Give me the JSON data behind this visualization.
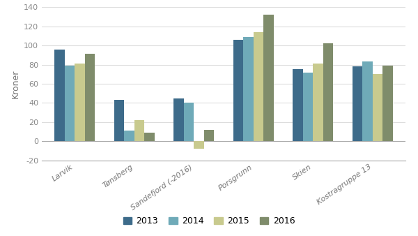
{
  "categories": [
    "Larvik",
    "Tønsberg",
    "Sandefjord (-2016)",
    "Porsgrunn",
    "Skien",
    "Kostragruppe 13"
  ],
  "years": [
    "2013",
    "2014",
    "2015",
    "2016"
  ],
  "values": {
    "Larvik": [
      96,
      79,
      81,
      91
    ],
    "Tønsberg": [
      43,
      11,
      22,
      9
    ],
    "Sandefjord (-2016)": [
      45,
      40,
      -8,
      12
    ],
    "Porsgrunn": [
      106,
      109,
      114,
      132
    ],
    "Skien": [
      75,
      72,
      81,
      102
    ],
    "Kostragruppe 13": [
      78,
      83,
      70,
      79
    ]
  },
  "colors": [
    "#3d6b8a",
    "#6faab8",
    "#c8ca8e",
    "#7f8c6b"
  ],
  "ylabel": "Kroner",
  "ylim": [
    -20,
    140
  ],
  "yticks": [
    -20,
    0,
    20,
    40,
    60,
    80,
    100,
    120,
    140
  ],
  "background_color": "#ffffff",
  "grid_color": "#dddddd",
  "bar_width": 0.17,
  "legend_labels": [
    "2013",
    "2014",
    "2015",
    "2016"
  ]
}
